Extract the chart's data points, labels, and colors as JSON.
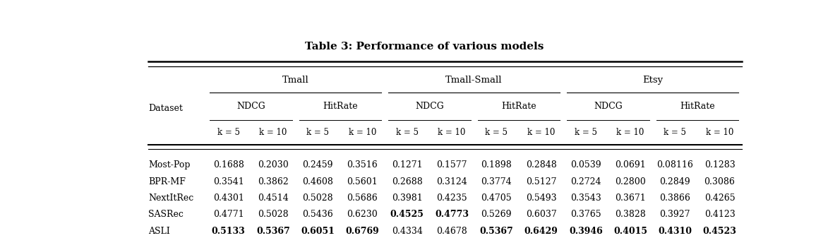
{
  "title": "Table 3: Performance of various models",
  "k_labels": [
    "k = 5",
    "k = 10",
    "k = 5",
    "k = 10",
    "k = 5",
    "k = 10",
    "k = 5",
    "k = 10",
    "k = 5",
    "k = 10",
    "k = 5",
    "k = 10"
  ],
  "data": {
    "Most-Pop": [
      "0.1688",
      "0.2030",
      "0.2459",
      "0.3516",
      "0.1271",
      "0.1577",
      "0.1898",
      "0.2848",
      "0.0539",
      "0.0691",
      "0.08116",
      "0.1283"
    ],
    "BPR-MF": [
      "0.3541",
      "0.3862",
      "0.4608",
      "0.5601",
      "0.2688",
      "0.3124",
      "0.3774",
      "0.5127",
      "0.2724",
      "0.2800",
      "0.2849",
      "0.3086"
    ],
    "NextItRec": [
      "0.4301",
      "0.4514",
      "0.5028",
      "0.5686",
      "0.3981",
      "0.4235",
      "0.4705",
      "0.5493",
      "0.3543",
      "0.3671",
      "0.3866",
      "0.4265"
    ],
    "SASRec": [
      "0.4771",
      "0.5028",
      "0.5436",
      "0.6230",
      "0.4525",
      "0.4773",
      "0.5269",
      "0.6037",
      "0.3765",
      "0.3828",
      "0.3927",
      "0.4123"
    ],
    "ASLI": [
      "0.5133",
      "0.5367",
      "0.6051",
      "0.6769",
      "0.4334",
      "0.4678",
      "0.5367",
      "0.6429",
      "0.3946",
      "0.4015",
      "0.4310",
      "0.4523"
    ]
  },
  "bold": {
    "Most-Pop": [
      false,
      false,
      false,
      false,
      false,
      false,
      false,
      false,
      false,
      false,
      false,
      false
    ],
    "BPR-MF": [
      false,
      false,
      false,
      false,
      false,
      false,
      false,
      false,
      false,
      false,
      false,
      false
    ],
    "NextItRec": [
      false,
      false,
      false,
      false,
      false,
      false,
      false,
      false,
      false,
      false,
      false,
      false
    ],
    "SASRec": [
      false,
      false,
      false,
      false,
      true,
      true,
      false,
      false,
      false,
      false,
      false,
      false
    ],
    "ASLI": [
      true,
      true,
      true,
      true,
      false,
      false,
      true,
      true,
      true,
      true,
      true,
      true
    ]
  },
  "background_color": "#ffffff",
  "text_color": "#000000",
  "font_family": "serif"
}
